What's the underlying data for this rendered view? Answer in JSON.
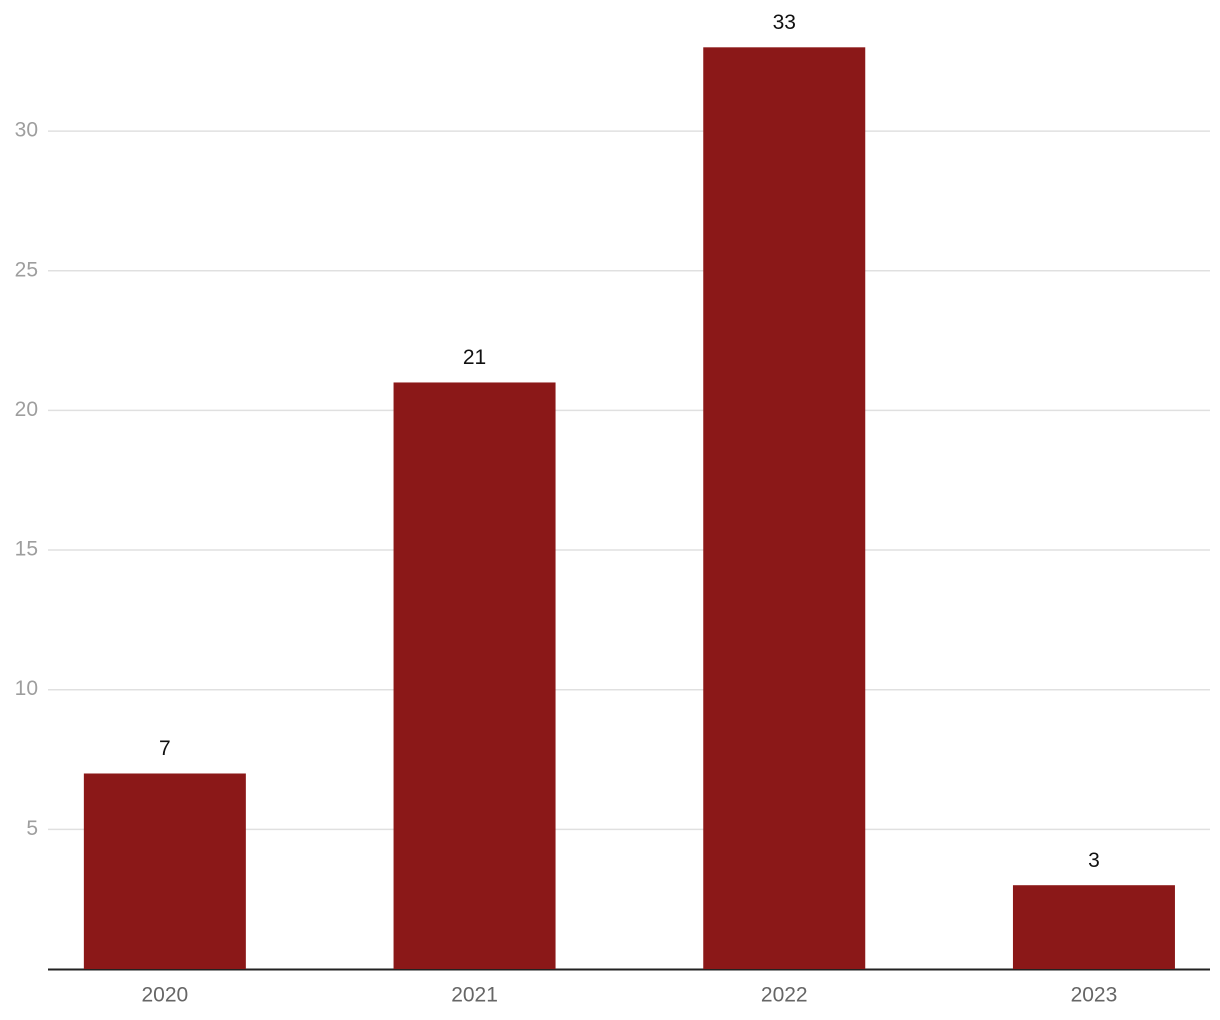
{
  "chart_data": {
    "type": "bar",
    "categories": [
      "2020",
      "2021",
      "2022",
      "2023"
    ],
    "values": [
      7,
      21,
      33,
      3
    ],
    "color": "#8b1818",
    "ylim": [
      0,
      34.5
    ],
    "yticks": [
      5,
      10,
      15,
      20,
      25,
      30
    ],
    "grid": true
  }
}
